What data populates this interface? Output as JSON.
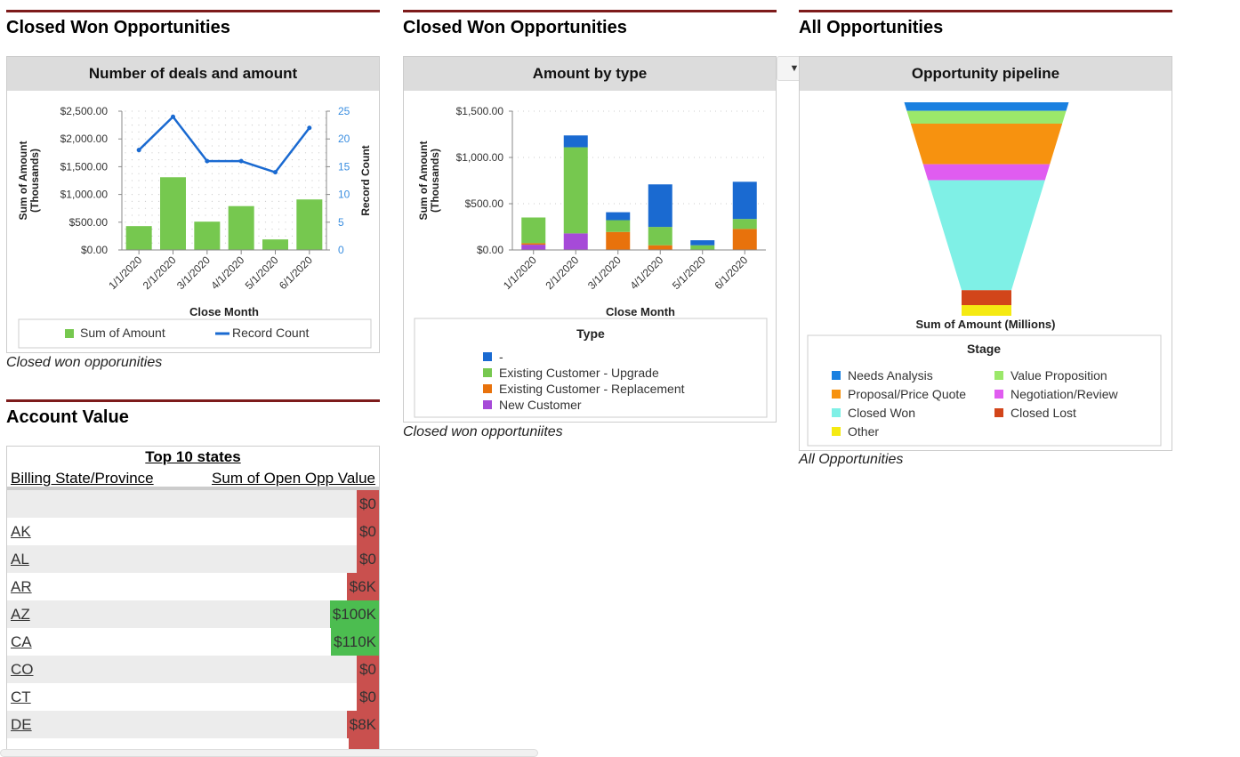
{
  "sections": {
    "s1": {
      "title": "Closed Won Opportunities",
      "caption": "Closed won opporunities"
    },
    "s2": {
      "title": "Closed Won Opportunities",
      "caption": "Closed won opportuniites"
    },
    "s3": {
      "title": "All Opportunities",
      "caption": "All Opportunities"
    },
    "s4": {
      "title": "Account Value"
    }
  },
  "colors": {
    "rule": "#7d1b1b",
    "green": "#76c84f",
    "blue": "#1a6ad1",
    "red_cell": "#c9504e",
    "green_cell": "#4cbd50"
  },
  "chart_data": [
    {
      "type": "bar+line",
      "title": "Number of deals and amount",
      "xlabel": "Close Month",
      "ylabel": "Sum of Amount (Thousands)",
      "ylabel_lines": [
        "Sum of Amount",
        "(Thousands)"
      ],
      "y2label": "Record Count",
      "categories": [
        "1/1/2020",
        "2/1/2020",
        "3/1/2020",
        "4/1/2020",
        "5/1/2020",
        "6/1/2020"
      ],
      "ylim": [
        0,
        2500
      ],
      "y2lim": [
        0,
        25
      ],
      "yticks": [
        "$0.00",
        "$500.00",
        "$1,000.00",
        "$1,500.00",
        "$2,000.00",
        "$2,500.00"
      ],
      "y2ticks": [
        "0",
        "5",
        "10",
        "15",
        "20",
        "25"
      ],
      "grid": true,
      "legend": "bottom",
      "series": [
        {
          "name": "Sum of Amount",
          "type": "bar",
          "color": "#76c84f",
          "values": [
            430,
            1310,
            510,
            790,
            190,
            910
          ]
        },
        {
          "name": "Record Count",
          "type": "line",
          "color": "#1a6ad1",
          "values": [
            18,
            24,
            16,
            16,
            14,
            22
          ]
        }
      ]
    },
    {
      "type": "stacked-bar",
      "title": "Amount by type",
      "xlabel": "Close Month",
      "ylabel": "Sum of Amount (Thousands)",
      "ylabel_lines": [
        "Sum of Amount",
        "(Thousands)"
      ],
      "categories": [
        "1/1/2020",
        "2/1/2020",
        "3/1/2020",
        "4/1/2020",
        "5/1/2020",
        "6/1/2020"
      ],
      "ylim": [
        0,
        1500
      ],
      "yticks": [
        "$0.00",
        "$500.00",
        "$1,000.00",
        "$1,500.00"
      ],
      "legend_title": "Type",
      "legend": "bottom",
      "series": [
        {
          "name": "New Customer",
          "color": "#a64ad8",
          "values": [
            57,
            179,
            0,
            0,
            0,
            0
          ]
        },
        {
          "name": "Existing Customer - Replacement",
          "color": "#e8720c",
          "values": [
            16,
            0,
            195,
            51,
            0,
            227
          ]
        },
        {
          "name": "Existing Customer - Upgrade",
          "color": "#76c84f",
          "values": [
            278,
            931,
            127,
            198,
            51,
            108
          ]
        },
        {
          "name": "-",
          "color": "#1a6ad1",
          "values": [
            0,
            128,
            86,
            460,
            54,
            402
          ]
        }
      ],
      "legend_order": [
        "-",
        "Existing Customer - Upgrade",
        "Existing Customer - Replacement",
        "New Customer"
      ]
    },
    {
      "type": "funnel",
      "title": "Opportunity pipeline",
      "xlabel": "Sum of Amount (Millions)",
      "legend_title": "Stage",
      "legend": "bottom",
      "stages": [
        {
          "name": "Needs Analysis",
          "color": "#1a80e0",
          "share": 0.04
        },
        {
          "name": "Value Proposition",
          "color": "#9be86a",
          "share": 0.06
        },
        {
          "name": "Proposal/Price Quote",
          "color": "#f7920f",
          "share": 0.19
        },
        {
          "name": "Negotiation/Review",
          "color": "#e05cf0",
          "share": 0.075
        },
        {
          "name": "Closed Won",
          "color": "#7ff0e6",
          "share": 0.515
        },
        {
          "name": "Closed Lost",
          "color": "#d2451a",
          "share": 0.07
        },
        {
          "name": "Other",
          "color": "#f5ea12",
          "share": 0.05
        }
      ],
      "legend_order": [
        "Needs Analysis",
        "Value Proposition",
        "Proposal/Price Quote",
        "Negotiation/Review",
        "Closed Won",
        "Closed Lost",
        "Other"
      ]
    }
  ],
  "table": {
    "title": "Top 10 states",
    "col1": "Billing State/Province",
    "col2": "Sum of Open Opp Value",
    "rows": [
      {
        "state": "",
        "value": "$0",
        "status": "red"
      },
      {
        "state": "AK",
        "value": "$0",
        "status": "red"
      },
      {
        "state": "AL",
        "value": "$0",
        "status": "red"
      },
      {
        "state": "AR",
        "value": "$6K",
        "status": "red"
      },
      {
        "state": "AZ",
        "value": "$100K",
        "status": "green"
      },
      {
        "state": "CA",
        "value": "$110K",
        "status": "green"
      },
      {
        "state": "CO",
        "value": "$0",
        "status": "red"
      },
      {
        "state": "CT",
        "value": "$0",
        "status": "red"
      },
      {
        "state": "DE",
        "value": "$8K",
        "status": "red"
      }
    ]
  },
  "dropdown": {
    "icon": "caret-down-icon",
    "glyph": "▼"
  }
}
